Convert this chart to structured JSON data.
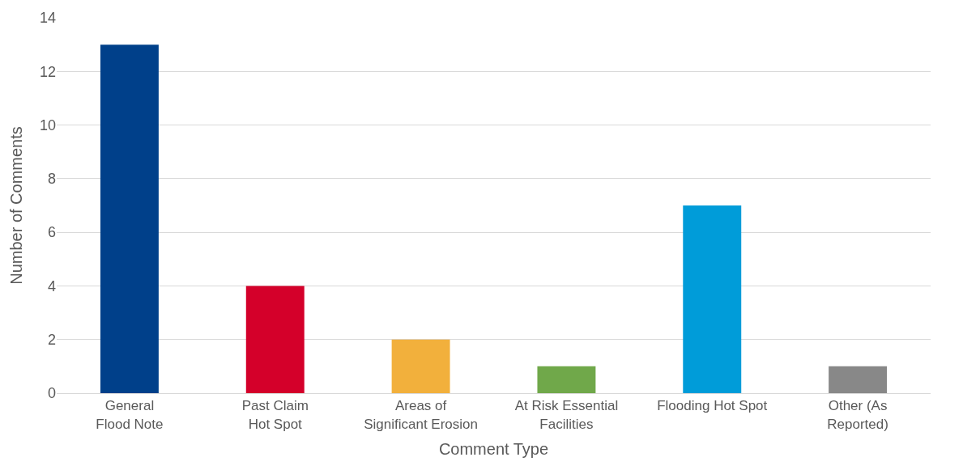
{
  "chart_data": {
    "type": "bar",
    "xlabel": "Comment Type",
    "ylabel": "Number of Comments",
    "categories": [
      "General Flood Note",
      "Past Claim Hot Spot",
      "Areas of Significant Erosion",
      "At Risk Essential Facilities",
      "Flooding Hot Spot",
      "Other (As Reported)"
    ],
    "values": [
      13,
      4,
      2,
      1,
      7,
      1
    ],
    "colors": [
      "#00408a",
      "#d4002a",
      "#f2b03c",
      "#70a84a",
      "#009cd9",
      "#888888"
    ],
    "ylim": [
      0,
      14
    ],
    "yticks": [
      0,
      2,
      4,
      6,
      8,
      10,
      12,
      14
    ],
    "grid": "y"
  }
}
